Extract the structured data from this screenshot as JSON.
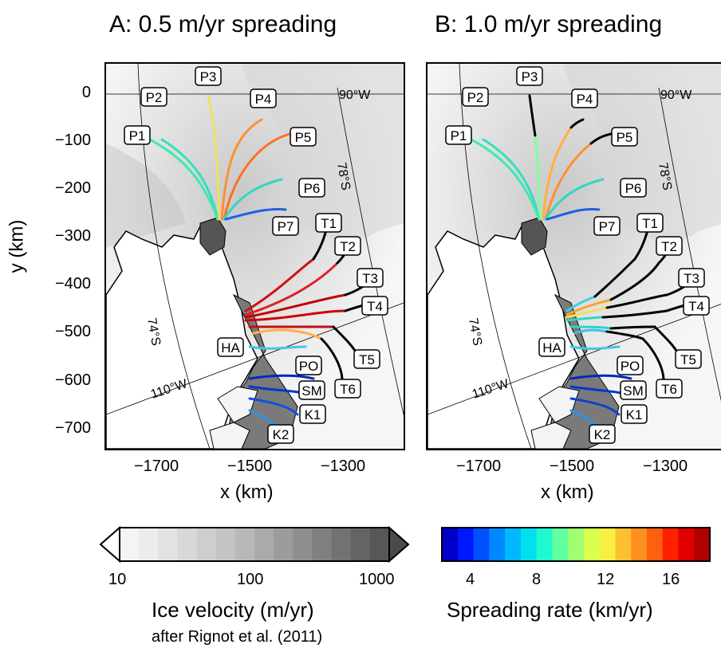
{
  "panels": [
    {
      "id": "A",
      "title": "A: 0.5 m/yr spreading"
    },
    {
      "id": "B",
      "title": "B: 1.0 m/yr spreading"
    }
  ],
  "axes": {
    "xlabel": "x (km)",
    "ylabel": "y (km)",
    "xticks": [
      "−1700",
      "−1500",
      "−1300"
    ],
    "yticks": [
      "0",
      "−100",
      "−200",
      "−300",
      "−400",
      "−500",
      "−600",
      "−700"
    ]
  },
  "graticule": {
    "lon_90": "90°W",
    "lon_110": "110°W",
    "lat_78": "78°S",
    "lat_74": "74°S"
  },
  "glacier_labels": [
    "P1",
    "P2",
    "P3",
    "P4",
    "P5",
    "P6",
    "P7",
    "T1",
    "T2",
    "T3",
    "T4",
    "T5",
    "T6",
    "HA",
    "PO",
    "SM",
    "K1",
    "K2"
  ],
  "velocity_colorbar": {
    "label": "Ice velocity (m/yr)",
    "credit": "after Rignot et al. (2011)",
    "ticks": [
      "10",
      "100",
      "1000"
    ],
    "colors": [
      "#f4f4f4",
      "#ececec",
      "#e2e2e2",
      "#d8d8d8",
      "#cecece",
      "#c4c4c4",
      "#b8b8b8",
      "#aaaaaa",
      "#9c9c9c",
      "#8e8e8e",
      "#808080",
      "#727272",
      "#646464",
      "#575757"
    ],
    "extend_low_color": "#ffffff",
    "extend_high_color": "#4a4a4a"
  },
  "spreading_colorbar": {
    "label": "Spreading rate (km/yr)",
    "ticks": [
      "4",
      "8",
      "12",
      "16"
    ],
    "colors": [
      "#0000c8",
      "#0018ff",
      "#0050ff",
      "#0088ff",
      "#00b8ff",
      "#00e0ee",
      "#20f8d0",
      "#60ffa0",
      "#a0ff70",
      "#d8ff50",
      "#f8f040",
      "#ffc030",
      "#ff9020",
      "#ff6010",
      "#ff2000",
      "#e00000",
      "#b00000"
    ]
  }
}
